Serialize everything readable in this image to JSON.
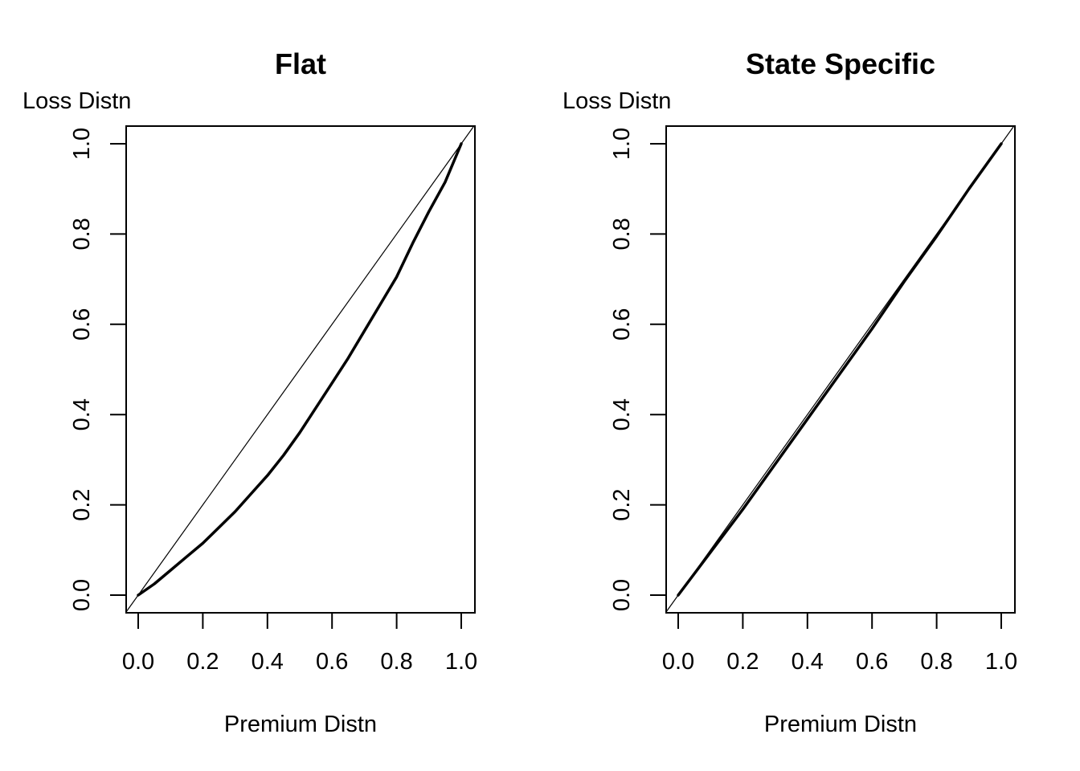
{
  "chart_data": [
    {
      "type": "line",
      "title": "Flat",
      "xlabel": "Premium Distn",
      "ylabel": "Loss Distn",
      "xlim": [
        0,
        1
      ],
      "ylim": [
        0,
        1
      ],
      "x_ticks": [
        "0.0",
        "0.2",
        "0.4",
        "0.6",
        "0.8",
        "1.0"
      ],
      "y_ticks": [
        "0.0",
        "0.2",
        "0.4",
        "0.6",
        "0.8",
        "1.0"
      ],
      "grid": false,
      "legend": "none",
      "series": [
        {
          "x": [
            0,
            0.05,
            0.1,
            0.15,
            0.2,
            0.25,
            0.3,
            0.35,
            0.4,
            0.45,
            0.5,
            0.55,
            0.6,
            0.65,
            0.7,
            0.75,
            0.8,
            0.85,
            0.9,
            0.95,
            1.0
          ],
          "y": [
            0,
            0.025,
            0.055,
            0.085,
            0.115,
            0.15,
            0.185,
            0.225,
            0.265,
            0.31,
            0.36,
            0.415,
            0.47,
            0.525,
            0.585,
            0.645,
            0.705,
            0.78,
            0.85,
            0.915,
            1.0
          ],
          "color": "#000000",
          "style": "bold"
        },
        {
          "x": [
            0,
            1
          ],
          "y": [
            0,
            1
          ],
          "color": "#000000",
          "style": "reference-diagonal"
        }
      ]
    },
    {
      "type": "line",
      "title": "State Specific",
      "xlabel": "Premium Distn",
      "ylabel": "Loss Distn",
      "xlim": [
        0,
        1
      ],
      "ylim": [
        0,
        1
      ],
      "x_ticks": [
        "0.0",
        "0.2",
        "0.4",
        "0.6",
        "0.8",
        "1.0"
      ],
      "y_ticks": [
        "0.0",
        "0.2",
        "0.4",
        "0.6",
        "0.8",
        "1.0"
      ],
      "grid": false,
      "legend": "none",
      "series": [
        {
          "x": [
            0,
            0.1,
            0.2,
            0.3,
            0.4,
            0.5,
            0.6,
            0.7,
            0.8,
            0.9,
            1.0
          ],
          "y": [
            0,
            0.095,
            0.19,
            0.29,
            0.39,
            0.49,
            0.59,
            0.695,
            0.795,
            0.9,
            1.0
          ],
          "color": "#000000",
          "style": "bold"
        },
        {
          "x": [
            0,
            1
          ],
          "y": [
            0,
            1
          ],
          "color": "#000000",
          "style": "reference-diagonal"
        }
      ]
    }
  ]
}
